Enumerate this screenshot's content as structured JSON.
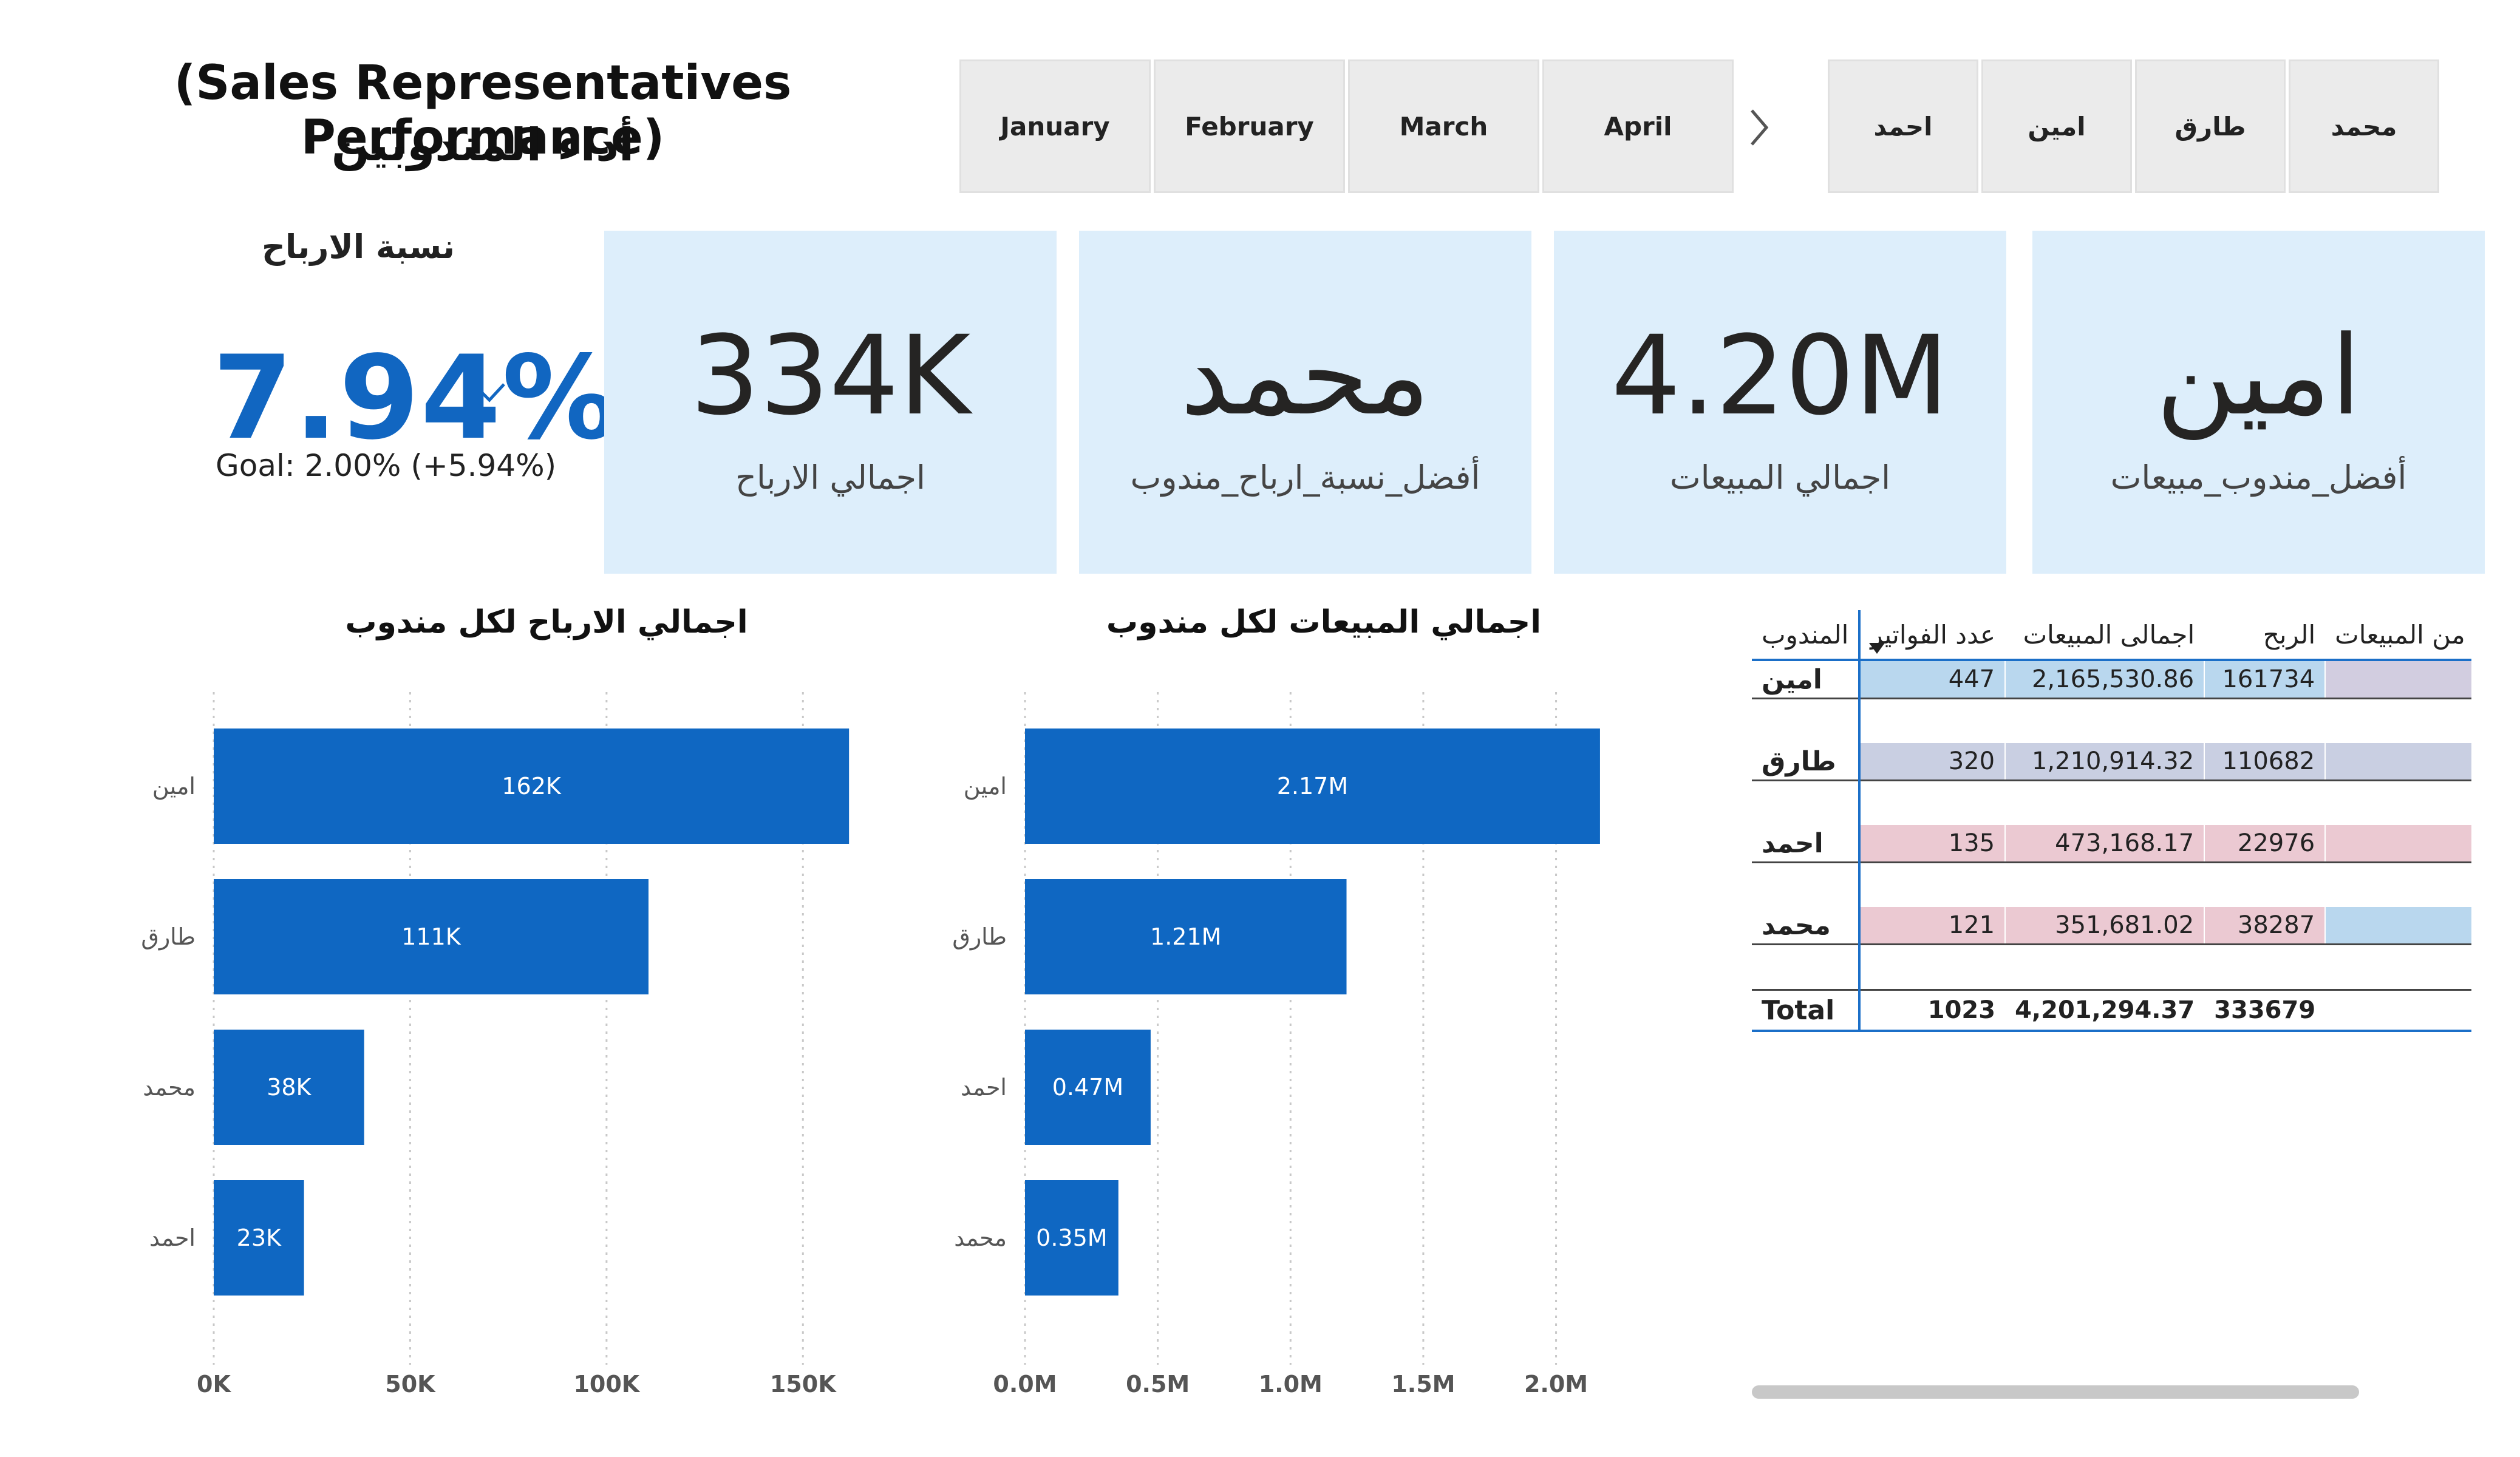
{
  "header": {
    "title_en": "(Sales Representatives Performance)",
    "title_ar": "أداء المندوبين"
  },
  "slicers": {
    "months": [
      "January",
      "February",
      "March",
      "April"
    ],
    "reps": [
      "احمد",
      "امين",
      "طارق",
      "محمد"
    ]
  },
  "kpi": {
    "title": "نسبة الارباح",
    "value": "7.94%",
    "goal": "Goal: 2.00% (+5.94%)",
    "color": "#1166c1"
  },
  "cards": [
    {
      "value": "334K",
      "label": "اجمالي الارباح"
    },
    {
      "value": "محمد",
      "label": "أفضل_نسبة_ارباح_مندوب"
    },
    {
      "value": "4.20M",
      "label": "اجمالي المبيعات"
    },
    {
      "value": "امين",
      "label": "أفضل_مندوب_مبيعات"
    }
  ],
  "chart_data": [
    {
      "type": "bar",
      "orientation": "horizontal",
      "title": "اجمالي الارباح لكل مندوب",
      "categories": [
        "امين",
        "طارق",
        "محمد",
        "احمد"
      ],
      "values": [
        161734,
        110682,
        38287,
        22976
      ],
      "data_labels": [
        "162K",
        "111K",
        "38K",
        "23K"
      ],
      "xlim": [
        0,
        175000
      ],
      "ticks": [
        0,
        50000,
        100000,
        150000
      ],
      "tick_labels": [
        "0K",
        "50K",
        "100K",
        "150K"
      ],
      "grid": true,
      "color": "#0f67c2"
    },
    {
      "type": "bar",
      "orientation": "horizontal",
      "title": "اجمالي المبيعات لكل مندوب",
      "categories": [
        "امين",
        "طارق",
        "احمد",
        "محمد"
      ],
      "values": [
        2165530.86,
        1210914.32,
        473168.17,
        351681.02
      ],
      "data_labels": [
        "2.17M",
        "1.21M",
        "0.47M",
        "0.35M"
      ],
      "xlim": [
        0,
        2200000
      ],
      "ticks": [
        0,
        500000,
        1000000,
        1500000,
        2000000
      ],
      "tick_labels": [
        "0.0M",
        "0.5M",
        "1.0M",
        "1.5M",
        "2.0M"
      ],
      "grid": true,
      "color": "#0f67c2"
    }
  ],
  "table": {
    "headers": {
      "rep": "المندوب",
      "invoices": "عدد الفواتير",
      "sales": "اجمالى المبيعات",
      "profit": "الربح",
      "share": "ح من المبيعات"
    },
    "rows": [
      {
        "rep": "امين",
        "invoices": "447",
        "sales": "2,165,530.86",
        "profit": "161734",
        "bg": "#b9d7ee",
        "share_bg": "#d2cde0"
      },
      {
        "rep": "طارق",
        "invoices": "320",
        "sales": "1,210,914.32",
        "profit": "110682",
        "bg": "#c9cfe2",
        "share_bg": "#c9cfe2"
      },
      {
        "rep": "احمد",
        "invoices": "135",
        "sales": "473,168.17",
        "profit": "22976",
        "bg": "#ebc9d2",
        "share_bg": "#ebc9d2"
      },
      {
        "rep": "محمد",
        "invoices": "121",
        "sales": "351,681.02",
        "profit": "38287",
        "bg": "#ebc9d2",
        "share_bg": "#b9d7ee"
      }
    ],
    "total": {
      "label": "Total",
      "invoices": "1023",
      "sales": "4,201,294.37",
      "profit": "333679"
    }
  }
}
